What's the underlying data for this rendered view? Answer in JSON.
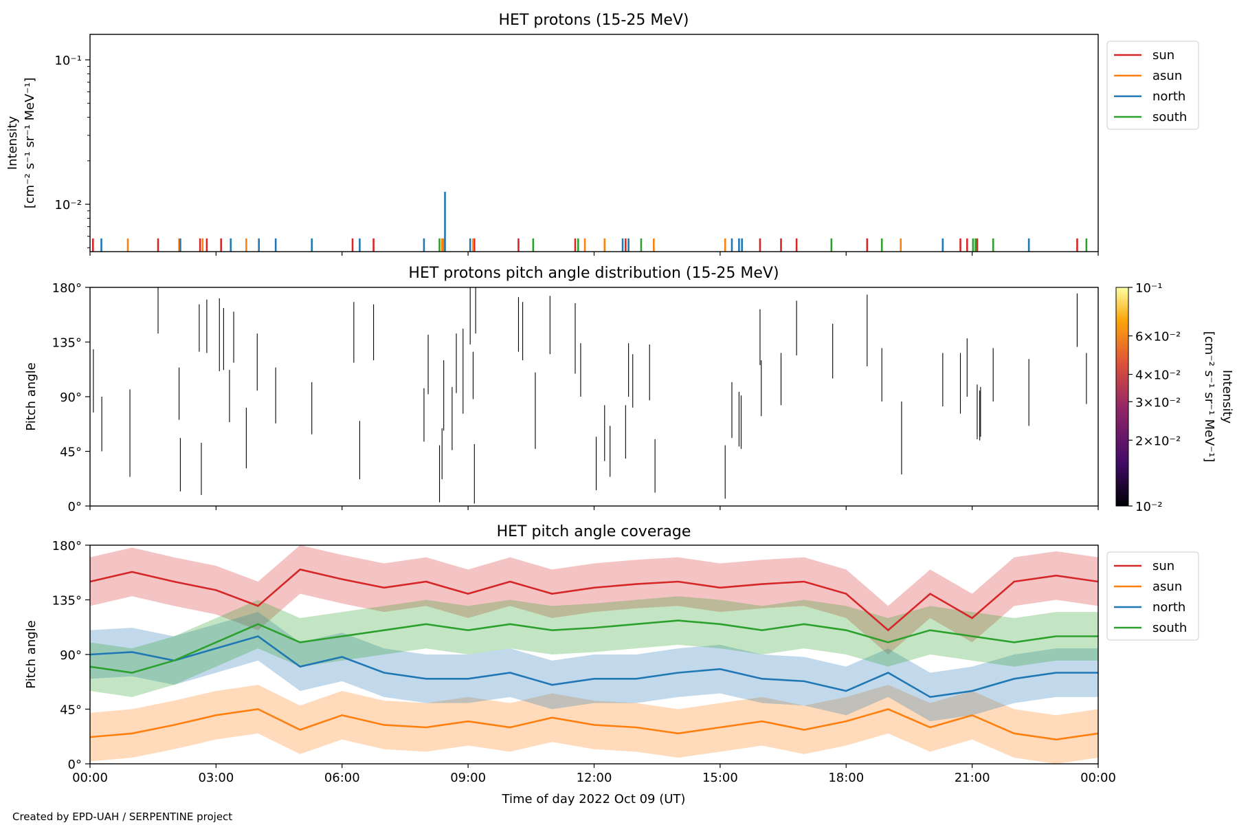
{
  "credit": "Created by EPD-UAH / SERPENTINE project",
  "xlabel": "Time of day 2022 Oct 09 (UT)",
  "x_ticks": [
    "00:00",
    "03:00",
    "06:00",
    "09:00",
    "12:00",
    "15:00",
    "18:00",
    "21:00",
    "00:00"
  ],
  "colors": {
    "sun": "#d62728",
    "asun": "#ff7f0e",
    "north": "#1f77b4",
    "south": "#2ca02c"
  },
  "chart_data": [
    {
      "type": "line",
      "title": "HET protons (15-25 MeV)",
      "ylabel_line1": "Intensity",
      "ylabel_line2": "[cm⁻² s⁻¹ sr⁻¹ MeV⁻¹]",
      "yscale": "log",
      "ylim": [
        0.0047,
        0.15
      ],
      "y_ticks": [
        {
          "value": 0.1,
          "label": "10⁻¹"
        },
        {
          "value": 0.01,
          "label": "10⁻²"
        }
      ],
      "xlim_hours": [
        0,
        24
      ],
      "legend": [
        "sun",
        "asun",
        "north",
        "south"
      ],
      "legend_loc": "outside-right",
      "series": [
        {
          "name": "sun",
          "spikes": [
            [
              0.07,
              0.0058
            ],
            [
              1.62,
              0.0058
            ],
            [
              2.62,
              0.0058
            ],
            [
              2.78,
              0.0058
            ],
            [
              3.12,
              0.0058
            ],
            [
              6.25,
              0.0058
            ],
            [
              6.75,
              0.0058
            ],
            [
              9.15,
              0.0058
            ],
            [
              10.2,
              0.0058
            ],
            [
              11.55,
              0.0058
            ],
            [
              12.75,
              0.0058
            ],
            [
              15.95,
              0.0058
            ],
            [
              16.45,
              0.0058
            ],
            [
              16.82,
              0.0058
            ],
            [
              18.5,
              0.0058
            ],
            [
              20.72,
              0.0058
            ],
            [
              20.88,
              0.0058
            ],
            [
              21.12,
              0.0058
            ],
            [
              23.5,
              0.0058
            ]
          ]
        },
        {
          "name": "asun",
          "spikes": [
            [
              0.9,
              0.0058
            ],
            [
              2.12,
              0.0058
            ],
            [
              2.68,
              0.0058
            ],
            [
              3.72,
              0.0058
            ],
            [
              8.38,
              0.0058
            ],
            [
              8.42,
              0.0058
            ],
            [
              9.12,
              0.0058
            ],
            [
              11.78,
              0.0058
            ],
            [
              12.25,
              0.0058
            ],
            [
              13.42,
              0.0058
            ],
            [
              15.12,
              0.0058
            ],
            [
              19.3,
              0.0058
            ]
          ]
        },
        {
          "name": "north",
          "spikes": [
            [
              0.27,
              0.0058
            ],
            [
              2.15,
              0.0058
            ],
            [
              3.35,
              0.0058
            ],
            [
              4.02,
              0.0058
            ],
            [
              4.42,
              0.0058
            ],
            [
              5.28,
              0.0058
            ],
            [
              6.42,
              0.0058
            ],
            [
              7.95,
              0.0058
            ],
            [
              8.45,
              0.0122
            ],
            [
              9.05,
              0.0058
            ],
            [
              12.68,
              0.0058
            ],
            [
              12.82,
              0.0058
            ],
            [
              15.28,
              0.0058
            ],
            [
              15.45,
              0.0058
            ],
            [
              15.52,
              0.0058
            ],
            [
              20.3,
              0.0058
            ],
            [
              22.35,
              0.0058
            ]
          ]
        },
        {
          "name": "south",
          "spikes": [
            [
              8.32,
              0.0058
            ],
            [
              10.55,
              0.0058
            ],
            [
              11.62,
              0.0058
            ],
            [
              13.12,
              0.0058
            ],
            [
              17.65,
              0.0058
            ],
            [
              18.85,
              0.0058
            ],
            [
              21.02,
              0.0058
            ],
            [
              21.08,
              0.0058
            ],
            [
              21.5,
              0.0058
            ],
            [
              23.72,
              0.0058
            ]
          ]
        }
      ]
    },
    {
      "type": "heatmap",
      "title": "HET protons pitch angle distribution (15-25 MeV)",
      "ylabel": "Pitch angle",
      "ylim": [
        0,
        180
      ],
      "y_ticks": [
        "0°",
        "45°",
        "90°",
        "135°",
        "180°"
      ],
      "xlim_hours": [
        0,
        24
      ],
      "colorbar": {
        "label": "Intensity",
        "unit": "[cm⁻² s⁻¹ sr⁻¹ MeV⁻¹]",
        "scale": "log",
        "range": [
          0.01,
          0.1
        ],
        "ticks": [
          {
            "value": 0.1,
            "label": "10⁻¹"
          },
          {
            "value": 0.06,
            "label": "6×10⁻²"
          },
          {
            "value": 0.04,
            "label": "4×10⁻²"
          },
          {
            "value": 0.03,
            "label": "3×10⁻²"
          },
          {
            "value": 0.02,
            "label": "2×10⁻²"
          },
          {
            "value": 0.01,
            "label": "10⁻²"
          }
        ]
      },
      "segments": [
        [
          0.08,
          77,
          129
        ],
        [
          0.28,
          45,
          90
        ],
        [
          0.95,
          24,
          96
        ],
        [
          1.62,
          142,
          180
        ],
        [
          2.12,
          71,
          114
        ],
        [
          2.15,
          12,
          56
        ],
        [
          2.65,
          9,
          52
        ],
        [
          2.6,
          127,
          166
        ],
        [
          2.78,
          126,
          170
        ],
        [
          3.08,
          111,
          171
        ],
        [
          3.18,
          112,
          163
        ],
        [
          3.32,
          69,
          112
        ],
        [
          3.42,
          118,
          160
        ],
        [
          3.72,
          31,
          81
        ],
        [
          3.98,
          95,
          142
        ],
        [
          4.42,
          68,
          114
        ],
        [
          5.28,
          59,
          102
        ],
        [
          6.28,
          118,
          168
        ],
        [
          6.42,
          22,
          70
        ],
        [
          6.75,
          120,
          166
        ],
        [
          7.95,
          53,
          97
        ],
        [
          8.05,
          92,
          141
        ],
        [
          8.32,
          3,
          50
        ],
        [
          8.38,
          22,
          64
        ],
        [
          8.42,
          62,
          120
        ],
        [
          8.62,
          46,
          98
        ],
        [
          8.72,
          93,
          142
        ],
        [
          8.88,
          76,
          146
        ],
        [
          9.05,
          133,
          180
        ],
        [
          9.12,
          88,
          127
        ],
        [
          9.18,
          142,
          180
        ],
        [
          9.15,
          2,
          51
        ],
        [
          10.2,
          127,
          172
        ],
        [
          10.3,
          120,
          168
        ],
        [
          10.6,
          47,
          110
        ],
        [
          10.95,
          125,
          173
        ],
        [
          11.55,
          109,
          167
        ],
        [
          11.68,
          90,
          134
        ],
        [
          12.05,
          13,
          57
        ],
        [
          12.25,
          37,
          83
        ],
        [
          12.38,
          24,
          66
        ],
        [
          12.75,
          39,
          83
        ],
        [
          12.82,
          90,
          134
        ],
        [
          12.92,
          81,
          125
        ],
        [
          13.32,
          87,
          133
        ],
        [
          13.45,
          11,
          55
        ],
        [
          15.12,
          6,
          50
        ],
        [
          15.28,
          56,
          102
        ],
        [
          15.45,
          49,
          94
        ],
        [
          15.5,
          47,
          91
        ],
        [
          15.95,
          116,
          162
        ],
        [
          15.98,
          74,
          120
        ],
        [
          16.45,
          83,
          126
        ],
        [
          16.82,
          124,
          169
        ],
        [
          17.68,
          105,
          150
        ],
        [
          18.5,
          115,
          174
        ],
        [
          18.85,
          86,
          130
        ],
        [
          19.32,
          26,
          86
        ],
        [
          20.3,
          82,
          126
        ],
        [
          20.72,
          76,
          126
        ],
        [
          20.88,
          90,
          138
        ],
        [
          21.12,
          55,
          100
        ],
        [
          21.18,
          54,
          95
        ],
        [
          21.2,
          57,
          98
        ],
        [
          21.5,
          86,
          130
        ],
        [
          22.35,
          66,
          121
        ],
        [
          23.5,
          131,
          175
        ],
        [
          23.72,
          84,
          126
        ]
      ]
    },
    {
      "type": "line",
      "title": "HET pitch angle coverage",
      "ylabel": "Pitch angle",
      "ylim": [
        0,
        180
      ],
      "y_ticks": [
        "0°",
        "45°",
        "90°",
        "135°",
        "180°"
      ],
      "xlim_hours": [
        0,
        24
      ],
      "legend": [
        "sun",
        "asun",
        "north",
        "south"
      ],
      "legend_loc": "outside-right",
      "series": [
        {
          "name": "sun",
          "x": [
            0,
            1,
            2,
            3,
            4,
            5,
            6,
            7,
            8,
            9,
            10,
            11,
            12,
            13,
            14,
            15,
            16,
            17,
            18,
            19,
            20,
            21,
            22,
            23,
            24
          ],
          "y": [
            150,
            158,
            150,
            143,
            130,
            160,
            152,
            145,
            150,
            140,
            150,
            140,
            145,
            148,
            150,
            145,
            148,
            150,
            140,
            110,
            140,
            120,
            150,
            155,
            150
          ],
          "band": 20
        },
        {
          "name": "asun",
          "x": [
            0,
            1,
            2,
            3,
            4,
            5,
            6,
            7,
            8,
            9,
            10,
            11,
            12,
            13,
            14,
            15,
            16,
            17,
            18,
            19,
            20,
            21,
            22,
            23,
            24
          ],
          "y": [
            22,
            25,
            32,
            40,
            45,
            28,
            40,
            32,
            30,
            35,
            30,
            38,
            32,
            30,
            25,
            30,
            35,
            28,
            35,
            45,
            30,
            40,
            25,
            20,
            25
          ],
          "band": 20
        },
        {
          "name": "north",
          "x": [
            0,
            1,
            2,
            3,
            4,
            5,
            6,
            7,
            8,
            9,
            10,
            11,
            12,
            13,
            14,
            15,
            16,
            17,
            18,
            19,
            20,
            21,
            22,
            23,
            24
          ],
          "y": [
            90,
            92,
            85,
            95,
            105,
            80,
            88,
            75,
            70,
            70,
            75,
            65,
            70,
            70,
            75,
            78,
            70,
            68,
            60,
            75,
            55,
            60,
            70,
            75,
            75
          ],
          "band": 20
        },
        {
          "name": "south",
          "x": [
            0,
            1,
            2,
            3,
            4,
            5,
            6,
            7,
            8,
            9,
            10,
            11,
            12,
            13,
            14,
            15,
            16,
            17,
            18,
            19,
            20,
            21,
            22,
            23,
            24
          ],
          "y": [
            80,
            75,
            85,
            100,
            115,
            100,
            105,
            110,
            115,
            110,
            115,
            110,
            112,
            115,
            118,
            115,
            110,
            115,
            110,
            100,
            110,
            105,
            100,
            105,
            105
          ],
          "band": 20
        }
      ]
    }
  ]
}
